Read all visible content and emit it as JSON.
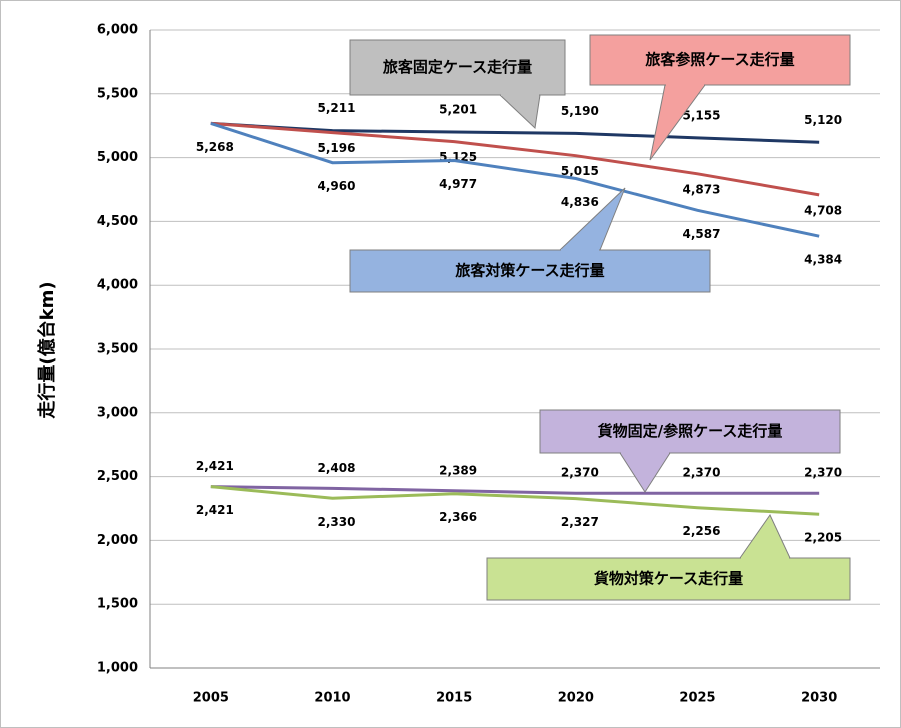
{
  "chart_data": {
    "type": "line",
    "ylabel": "走行量(億台km)",
    "categories": [
      "2005",
      "2010",
      "2015",
      "2020",
      "2025",
      "2030"
    ],
    "ylim": [
      1000,
      6000
    ],
    "yticks": [
      {
        "value": 1000,
        "label": "1,000"
      },
      {
        "value": 1500,
        "label": "1,500"
      },
      {
        "value": 2000,
        "label": "2,000"
      },
      {
        "value": 2500,
        "label": "2,500"
      },
      {
        "value": 3000,
        "label": "3,000"
      },
      {
        "value": 3500,
        "label": "3,500"
      },
      {
        "value": 4000,
        "label": "4,000"
      },
      {
        "value": 4500,
        "label": "4,500"
      },
      {
        "value": 5000,
        "label": "5,000"
      },
      {
        "value": 5500,
        "label": "5,500"
      },
      {
        "value": 6000,
        "label": "6,000"
      }
    ],
    "grid": true,
    "series": [
      {
        "name": "旅客固定ケース走行量",
        "color": "#1f3864",
        "values": [
          5268,
          5211,
          5201,
          5190,
          5155,
          5120
        ],
        "value_labels": [
          null,
          "5,211",
          "5,201",
          "5,190",
          "5,155",
          "5,120"
        ]
      },
      {
        "name": "旅客参照ケース走行量",
        "color": "#c0504d",
        "values": [
          5268,
          5196,
          5125,
          5015,
          4873,
          4708
        ],
        "value_labels": [
          null,
          "5,196",
          "5,125",
          "5,015",
          "4,873",
          "4,708"
        ]
      },
      {
        "name": "旅客対策ケース走行量",
        "color": "#4f81bd",
        "values": [
          5268,
          4960,
          4977,
          4836,
          4587,
          4384
        ],
        "value_labels": [
          "5,268",
          "4,960",
          "4,977",
          "4,836",
          "4,587",
          "4,384"
        ]
      },
      {
        "name": "貨物固定/参照ケース走行量",
        "color": "#8064a2",
        "values": [
          2421,
          2408,
          2389,
          2370,
          2370,
          2370
        ],
        "value_labels": [
          "2,421",
          "2,408",
          "2,389",
          "2,370",
          "2,370",
          "2,370"
        ]
      },
      {
        "name": "貨物対策ケース走行量",
        "color": "#9bbb59",
        "values": [
          2421,
          2330,
          2366,
          2327,
          2256,
          2205
        ],
        "value_labels": [
          "2,421",
          "2,330",
          "2,366",
          "2,327",
          "2,256",
          "2,205"
        ]
      }
    ]
  }
}
